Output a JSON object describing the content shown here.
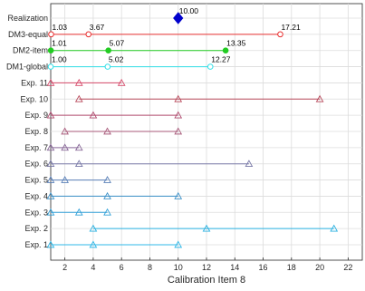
{
  "chart_data": {
    "type": "interval-dot",
    "xlabel": "Calibration Item 8",
    "xlim": [
      1,
      23
    ],
    "xticks": [
      2,
      4,
      6,
      8,
      10,
      12,
      14,
      16,
      18,
      20,
      22
    ],
    "grid": true,
    "realization": {
      "label": "Realization",
      "value": 10.0,
      "value_label": "10.00",
      "color": "#0000cc"
    },
    "rows": [
      {
        "label": "DM3-equal",
        "values": [
          1.03,
          3.67,
          17.21
        ],
        "value_labels": [
          "1.03",
          "3.67",
          "17.21"
        ],
        "marker": "circle",
        "color": "#e83030"
      },
      {
        "label": "DM2-item",
        "values": [
          1.01,
          5.07,
          13.35
        ],
        "value_labels": [
          "1.01",
          "5.07",
          "13.35"
        ],
        "marker": "dot",
        "color": "#22cc22"
      },
      {
        "label": "DM1-global",
        "values": [
          1.0,
          5.02,
          12.27
        ],
        "value_labels": [
          "1.00",
          "5.02",
          "12.27"
        ],
        "marker": "circle",
        "color": "#33e0e8"
      },
      {
        "label": "Exp. 11",
        "values": [
          1,
          3,
          6
        ],
        "marker": "triangle",
        "color": "#d64a6a"
      },
      {
        "label": "Exp. 10",
        "values": [
          3,
          10,
          20
        ],
        "marker": "triangle",
        "color": "#b8485a"
      },
      {
        "label": "Exp. 9",
        "values": [
          1,
          4,
          10
        ],
        "marker": "triangle",
        "color": "#b04a6e"
      },
      {
        "label": "Exp. 8",
        "values": [
          2,
          5,
          10
        ],
        "marker": "triangle",
        "color": "#a85a7a"
      },
      {
        "label": "Exp. 7",
        "values": [
          1,
          2,
          3
        ],
        "marker": "triangle",
        "color": "#8a6a9a"
      },
      {
        "label": "Exp. 6",
        "values": [
          1,
          3,
          15
        ],
        "marker": "triangle",
        "color": "#7a7aa8"
      },
      {
        "label": "Exp. 5",
        "values": [
          1,
          2,
          5
        ],
        "marker": "triangle",
        "color": "#5a80b8"
      },
      {
        "label": "Exp. 4",
        "values": [
          1,
          5,
          10
        ],
        "marker": "triangle",
        "color": "#3a90c8"
      },
      {
        "label": "Exp. 3",
        "values": [
          1,
          3,
          5
        ],
        "marker": "triangle",
        "color": "#30a0d8"
      },
      {
        "label": "Exp. 2",
        "values": [
          4,
          12,
          21
        ],
        "marker": "triangle",
        "color": "#28b0e0"
      },
      {
        "label": "Exp. 1",
        "values": [
          1,
          4,
          10
        ],
        "marker": "triangle",
        "color": "#30b8e8"
      }
    ]
  }
}
